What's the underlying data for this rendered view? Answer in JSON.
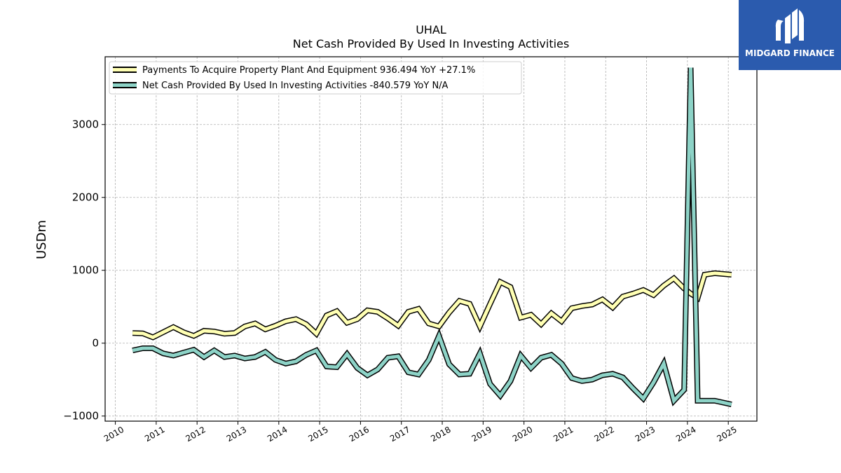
{
  "brand": {
    "name": "MIDGARD FINANCE",
    "bg_color": "#2b5bae"
  },
  "chart_data": {
    "type": "line",
    "title": "UHAL",
    "subtitle": "Net Cash Provided By Used In Investing Activities",
    "xlabel": "",
    "ylabel": "USDm",
    "xlim": [
      2009.75,
      2025.7
    ],
    "ylim": [
      -1070,
      3930
    ],
    "yticks": [
      -1000,
      0,
      1000,
      2000,
      3000
    ],
    "ytick_labels": [
      "−1000",
      "0",
      "1000",
      "2000",
      "3000"
    ],
    "xticks": [
      2010,
      2011,
      2012,
      2013,
      2014,
      2015,
      2016,
      2017,
      2018,
      2019,
      2020,
      2021,
      2022,
      2023,
      2024,
      2025
    ],
    "xtick_labels": [
      "2010",
      "2011",
      "2012",
      "2013",
      "2014",
      "2015",
      "2016",
      "2017",
      "2018",
      "2019",
      "2020",
      "2021",
      "2022",
      "2023",
      "2024",
      "2025"
    ],
    "grid": true,
    "legend_position": "top-left",
    "series": [
      {
        "name": "Payments To Acquire Property Plant And Equipment",
        "legend_label": "Payments To Acquire Property Plant And Equipment  936.494 YoY +27.1%",
        "color": "#ffffb3",
        "x": [
          2010.42,
          2010.67,
          2010.92,
          2011.17,
          2011.42,
          2011.67,
          2011.92,
          2012.17,
          2012.42,
          2012.67,
          2012.92,
          2013.17,
          2013.42,
          2013.67,
          2013.92,
          2014.17,
          2014.42,
          2014.67,
          2014.92,
          2015.17,
          2015.42,
          2015.67,
          2015.92,
          2016.17,
          2016.42,
          2016.67,
          2016.92,
          2017.17,
          2017.42,
          2017.67,
          2017.92,
          2018.17,
          2018.42,
          2018.67,
          2018.92,
          2019.17,
          2019.42,
          2019.67,
          2019.92,
          2020.17,
          2020.42,
          2020.67,
          2020.92,
          2021.17,
          2021.42,
          2021.67,
          2021.92,
          2022.17,
          2022.42,
          2022.67,
          2022.92,
          2023.17,
          2023.42,
          2023.67,
          2023.92,
          2024.08,
          2024.25,
          2024.42,
          2024.67,
          2025.08
        ],
        "values": [
          140,
          135,
          80,
          150,
          220,
          150,
          100,
          170,
          160,
          130,
          140,
          230,
          270,
          190,
          240,
          300,
          330,
          260,
          130,
          380,
          440,
          280,
          330,
          450,
          430,
          340,
          240,
          430,
          470,
          270,
          230,
          420,
          580,
          540,
          230,
          540,
          840,
          770,
          350,
          390,
          260,
          410,
          300,
          480,
          510,
          530,
          600,
          490,
          640,
          680,
          730,
          660,
          790,
          890,
          750,
          680,
          620,
          940,
          960,
          940
        ]
      },
      {
        "name": "Net Cash Provided By Used In Investing Activities",
        "legend_label": "Net Cash Provided By Used In Investing Activities  -840.579 YoY N/A",
        "color": "#8dd3c7",
        "x": [
          2010.42,
          2010.67,
          2010.92,
          2011.17,
          2011.42,
          2011.67,
          2011.92,
          2012.17,
          2012.42,
          2012.67,
          2012.92,
          2013.17,
          2013.42,
          2013.67,
          2013.92,
          2014.17,
          2014.42,
          2014.67,
          2014.92,
          2015.17,
          2015.42,
          2015.67,
          2015.92,
          2016.17,
          2016.42,
          2016.67,
          2016.92,
          2017.17,
          2017.42,
          2017.67,
          2017.92,
          2018.17,
          2018.42,
          2018.67,
          2018.92,
          2019.17,
          2019.42,
          2019.67,
          2019.92,
          2020.17,
          2020.42,
          2020.67,
          2020.92,
          2021.17,
          2021.42,
          2021.67,
          2021.92,
          2022.17,
          2022.42,
          2022.67,
          2022.92,
          2023.17,
          2023.42,
          2023.67,
          2023.92,
          2024.08,
          2024.25,
          2024.42,
          2024.67,
          2025.08
        ],
        "values": [
          -100,
          -70,
          -70,
          -140,
          -170,
          -130,
          -90,
          -190,
          -100,
          -190,
          -170,
          -210,
          -190,
          -120,
          -230,
          -280,
          -250,
          -160,
          -100,
          -320,
          -330,
          -150,
          -340,
          -440,
          -360,
          -200,
          -180,
          -400,
          -430,
          -230,
          100,
          -290,
          -430,
          -420,
          -140,
          -560,
          -720,
          -520,
          -170,
          -340,
          -200,
          -160,
          -280,
          -480,
          -520,
          -500,
          -440,
          -420,
          -470,
          -620,
          -760,
          -540,
          -280,
          -790,
          -640,
          3780,
          -790,
          -790,
          -790,
          -840
        ]
      }
    ]
  }
}
